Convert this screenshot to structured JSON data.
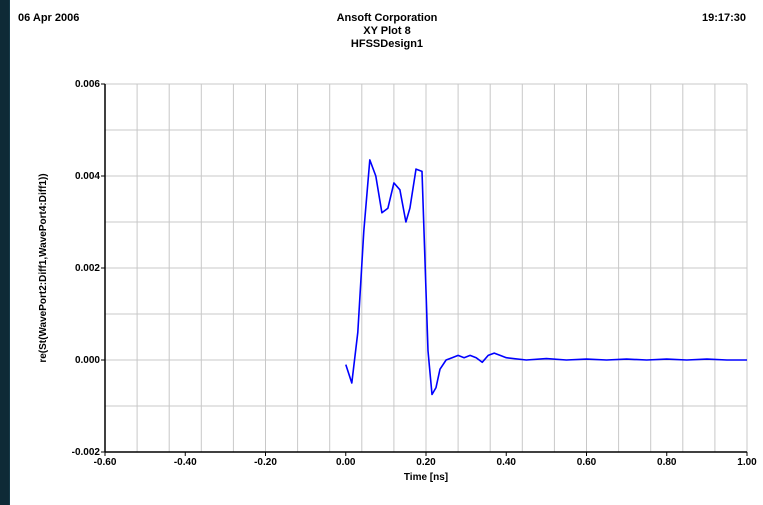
{
  "header": {
    "date": "06 Apr 2006",
    "time": "19:17:30",
    "company": "Ansoft Corporation",
    "plot_name": "XY Plot 8",
    "design_name": "HFSSDesign1"
  },
  "colors": {
    "background": "#0e2a36",
    "plot_bg": "#ffffff",
    "grid": "#c8c8c8",
    "trace": "#0000ff"
  },
  "chart_data": {
    "type": "line",
    "title": "XY Plot 8",
    "xlabel": "Time [ns]",
    "ylabel": "re(St(WavePort2:Diff1,WavePort4:Diff1))",
    "xlim": [
      -0.6,
      1.0
    ],
    "ylim": [
      -0.002,
      0.006
    ],
    "x_ticks": [
      "-0.60",
      "-0.40",
      "-0.20",
      "0.00",
      "0.20",
      "0.40",
      "0.60",
      "0.80",
      "1.00"
    ],
    "y_ticks": [
      "-0.002",
      "0.000",
      "0.002",
      "0.004",
      "0.006"
    ],
    "grid": true,
    "series": [
      {
        "name": "",
        "color": "#0000ff",
        "x": [
          0.0,
          0.015,
          0.03,
          0.045,
          0.06,
          0.075,
          0.09,
          0.105,
          0.12,
          0.135,
          0.15,
          0.16,
          0.175,
          0.19,
          0.205,
          0.215,
          0.225,
          0.235,
          0.25,
          0.265,
          0.28,
          0.295,
          0.31,
          0.325,
          0.34,
          0.355,
          0.37,
          0.385,
          0.4,
          0.45,
          0.5,
          0.55,
          0.6,
          0.65,
          0.7,
          0.75,
          0.8,
          0.85,
          0.9,
          0.95,
          1.0
        ],
        "y": [
          -0.0001,
          -0.0005,
          0.0006,
          0.0028,
          0.00435,
          0.004,
          0.0032,
          0.0033,
          0.00385,
          0.0037,
          0.003,
          0.0033,
          0.00415,
          0.0041,
          0.0002,
          -0.00075,
          -0.0006,
          -0.0002,
          0.0,
          5e-05,
          0.0001,
          5e-05,
          0.0001,
          5e-05,
          -5e-05,
          0.0001,
          0.00015,
          0.0001,
          5e-05,
          0.0,
          3e-05,
          0.0,
          2e-05,
          0.0,
          2e-05,
          0.0,
          2e-05,
          0.0,
          2e-05,
          0.0,
          0.0
        ]
      }
    ]
  }
}
